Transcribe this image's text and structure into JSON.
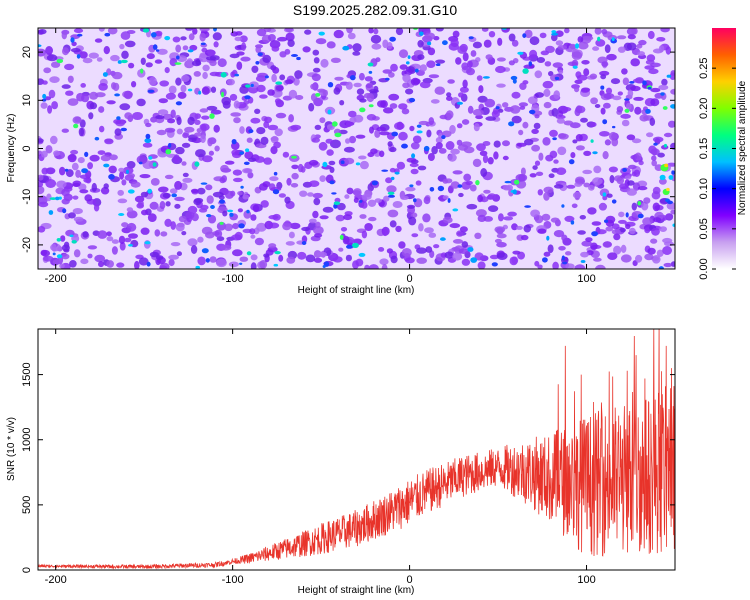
{
  "title": "S199.2025.282.09.31.G10",
  "colors": {
    "line": "#e8332a",
    "axis": "#000000"
  },
  "chart_data": [
    {
      "type": "heatmap",
      "title": "S199.2025.282.09.31.G10",
      "xlabel": "Height of straight line (km)",
      "ylabel": "Frequency (Hz)",
      "xlim": [
        -210,
        150
      ],
      "ylim": [
        -25,
        25
      ],
      "xticks": [
        -200,
        -100,
        0,
        100
      ],
      "yticks": [
        -20,
        -10,
        0,
        10,
        20
      ],
      "xtick_labels": [
        "-200",
        "-100",
        "0",
        "100"
      ],
      "ytick_labels": [
        "-20",
        "-10",
        "0",
        "10",
        "20"
      ],
      "colorbar": {
        "label": "Normalized spectral amplitude",
        "range": [
          0,
          0.3
        ],
        "ticks": [
          "0.00",
          "0.05",
          "0.10",
          "0.15",
          "0.20",
          "0.25"
        ],
        "colormap": [
          "#ffffff",
          "#c8a0f0",
          "#8000ff",
          "#0000ff",
          "#00c0ff",
          "#00ff80",
          "#80ff00",
          "#ffd000",
          "#ff6000",
          "#ff0060"
        ]
      },
      "notes": "Speckled noise field, mostly purple (~0.02-0.05) with scattered cyan/green peaks; a brighter yellow/green spot near x=145, y=-5 to -10."
    },
    {
      "type": "line",
      "xlabel": "Height of straight line (km)",
      "ylabel": "SNR (10 * v/v)",
      "xlim": [
        -210,
        150
      ],
      "ylim": [
        0,
        1850
      ],
      "xticks": [
        -200,
        -100,
        0,
        100
      ],
      "yticks": [
        0,
        500,
        1000,
        1500
      ],
      "xtick_labels": [
        "-200",
        "-100",
        "0",
        "100"
      ],
      "ytick_labels": [
        "0",
        "500",
        "1000",
        "1500"
      ],
      "series": [
        {
          "name": "SNR",
          "envelope": [
            {
              "x": -210,
              "y": 30
            },
            {
              "x": -150,
              "y": 25
            },
            {
              "x": -110,
              "y": 40
            },
            {
              "x": -90,
              "y": 90
            },
            {
              "x": -60,
              "y": 200
            },
            {
              "x": -30,
              "y": 320
            },
            {
              "x": -10,
              "y": 450
            },
            {
              "x": 10,
              "y": 600
            },
            {
              "x": 30,
              "y": 720
            },
            {
              "x": 50,
              "y": 790
            },
            {
              "x": 65,
              "y": 760
            },
            {
              "x": 80,
              "y": 700
            },
            {
              "x": 100,
              "y": 650
            },
            {
              "x": 120,
              "y": 700
            },
            {
              "x": 140,
              "y": 750
            },
            {
              "x": 150,
              "y": 800
            }
          ],
          "noise_level": [
            {
              "x": -210,
              "y": 10
            },
            {
              "x": -100,
              "y": 20
            },
            {
              "x": -50,
              "y": 120
            },
            {
              "x": 0,
              "y": 180
            },
            {
              "x": 50,
              "y": 150
            },
            {
              "x": 80,
              "y": 350
            },
            {
              "x": 100,
              "y": 550
            },
            {
              "x": 150,
              "y": 650
            }
          ],
          "spikes": [
            {
              "x": 88,
              "y": 1720
            },
            {
              "x": 97,
              "y": 1500
            },
            {
              "x": 104,
              "y": 1290
            },
            {
              "x": 123,
              "y": 1530
            },
            {
              "x": 128,
              "y": 1650
            },
            {
              "x": 133,
              "y": 1470
            },
            {
              "x": 138,
              "y": 1860
            },
            {
              "x": 145,
              "y": 1720
            },
            {
              "x": 148,
              "y": 1550
            }
          ]
        }
      ]
    }
  ]
}
